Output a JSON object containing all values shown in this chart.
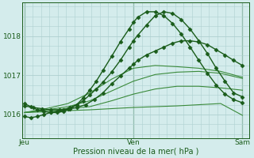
{
  "bg_color": "#d4ecec",
  "grid_color": "#aed0d0",
  "line_color_dark": "#1a5c1a",
  "line_color_light": "#3a8a3a",
  "xlabel": "Pression niveau de la mer( hPa )",
  "xtick_labels": [
    "Jeu",
    "Ven",
    "Sam"
  ],
  "xtick_positions": [
    0.0,
    0.5,
    1.0
  ],
  "ytick_labels": [
    "1016",
    "1017",
    "1018"
  ],
  "ytick_positions": [
    1016,
    1017,
    1018
  ],
  "ylim": [
    1015.4,
    1018.85
  ],
  "xlim": [
    -0.01,
    1.03
  ],
  "series": [
    {
      "x": [
        0.0,
        0.1,
        0.2,
        0.3,
        0.4,
        0.5,
        0.6,
        0.7,
        0.8,
        0.9,
        1.0
      ],
      "y": [
        1016.05,
        1016.07,
        1016.1,
        1016.12,
        1016.15,
        1016.18,
        1016.2,
        1016.22,
        1016.25,
        1016.28,
        1015.98
      ],
      "marker": null,
      "lw": 0.8,
      "ls": "-",
      "color": "#3a8a3a"
    },
    {
      "x": [
        0.0,
        0.1,
        0.2,
        0.3,
        0.4,
        0.5,
        0.6,
        0.7,
        0.8,
        0.9,
        1.0
      ],
      "y": [
        1016.05,
        1016.1,
        1016.15,
        1016.2,
        1016.35,
        1016.52,
        1016.65,
        1016.72,
        1016.72,
        1016.68,
        1016.62
      ],
      "marker": null,
      "lw": 0.8,
      "ls": "-",
      "color": "#3a8a3a"
    },
    {
      "x": [
        0.0,
        0.1,
        0.2,
        0.3,
        0.4,
        0.5,
        0.6,
        0.7,
        0.8,
        0.9,
        1.0
      ],
      "y": [
        1016.05,
        1016.12,
        1016.2,
        1016.35,
        1016.6,
        1016.85,
        1017.02,
        1017.08,
        1017.1,
        1017.05,
        1016.92
      ],
      "marker": null,
      "lw": 0.8,
      "ls": "-",
      "color": "#3a8a3a"
    },
    {
      "x": [
        0.0,
        0.1,
        0.2,
        0.3,
        0.4,
        0.5,
        0.6,
        0.7,
        0.8,
        0.9,
        1.0
      ],
      "y": [
        1016.05,
        1016.15,
        1016.28,
        1016.55,
        1016.9,
        1017.18,
        1017.25,
        1017.22,
        1017.18,
        1017.1,
        1016.95
      ],
      "marker": null,
      "lw": 0.8,
      "ls": "-",
      "color": "#3a8a3a"
    },
    {
      "x": [
        0.0,
        0.04,
        0.08,
        0.12,
        0.16,
        0.2,
        0.24,
        0.28,
        0.32,
        0.36,
        0.4,
        0.44,
        0.48,
        0.5,
        0.52,
        0.56,
        0.6,
        0.64,
        0.68,
        0.72,
        0.76,
        0.8,
        0.84,
        0.88,
        0.92,
        0.96,
        1.0
      ],
      "y": [
        1016.22,
        1016.18,
        1016.15,
        1016.12,
        1016.12,
        1016.14,
        1016.18,
        1016.25,
        1016.38,
        1016.55,
        1016.78,
        1016.98,
        1017.18,
        1017.28,
        1017.38,
        1017.52,
        1017.62,
        1017.72,
        1017.82,
        1017.88,
        1017.88,
        1017.85,
        1017.78,
        1017.65,
        1017.52,
        1017.38,
        1017.25
      ],
      "marker": "D",
      "ms": 2.5,
      "lw": 1.0,
      "ls": "-",
      "color": "#1a5c1a"
    },
    {
      "x": [
        0.0,
        0.03,
        0.06,
        0.09,
        0.12,
        0.15,
        0.18,
        0.21,
        0.24,
        0.27,
        0.3,
        0.33,
        0.36,
        0.4,
        0.44,
        0.48,
        0.5,
        0.52,
        0.56,
        0.6,
        0.64,
        0.68,
        0.72,
        0.76,
        0.8,
        0.84,
        0.88,
        0.92,
        0.96,
        1.0
      ],
      "y": [
        1015.95,
        1015.92,
        1015.95,
        1016.0,
        1016.05,
        1016.08,
        1016.12,
        1016.18,
        1016.25,
        1016.35,
        1016.5,
        1016.65,
        1016.82,
        1017.08,
        1017.38,
        1017.72,
        1017.88,
        1018.02,
        1018.28,
        1018.52,
        1018.62,
        1018.58,
        1018.42,
        1018.18,
        1017.88,
        1017.55,
        1017.18,
        1016.85,
        1016.55,
        1016.45
      ],
      "marker": "D",
      "ms": 2.5,
      "lw": 1.0,
      "ls": "-",
      "color": "#1a5c1a"
    },
    {
      "x": [
        0.0,
        0.03,
        0.06,
        0.09,
        0.12,
        0.15,
        0.18,
        0.21,
        0.24,
        0.27,
        0.3,
        0.33,
        0.36,
        0.4,
        0.44,
        0.48,
        0.5,
        0.52,
        0.56,
        0.6,
        0.64,
        0.68,
        0.72,
        0.76,
        0.8,
        0.84,
        0.88,
        0.92,
        0.96,
        1.0
      ],
      "y": [
        1016.28,
        1016.2,
        1016.12,
        1016.08,
        1016.05,
        1016.05,
        1016.08,
        1016.15,
        1016.25,
        1016.42,
        1016.62,
        1016.85,
        1017.12,
        1017.48,
        1017.85,
        1018.18,
        1018.35,
        1018.48,
        1018.62,
        1018.62,
        1018.52,
        1018.32,
        1018.05,
        1017.72,
        1017.38,
        1017.05,
        1016.75,
        1016.52,
        1016.38,
        1016.3
      ],
      "marker": "D",
      "ms": 2.5,
      "lw": 1.0,
      "ls": "-",
      "color": "#1a5c1a"
    }
  ]
}
